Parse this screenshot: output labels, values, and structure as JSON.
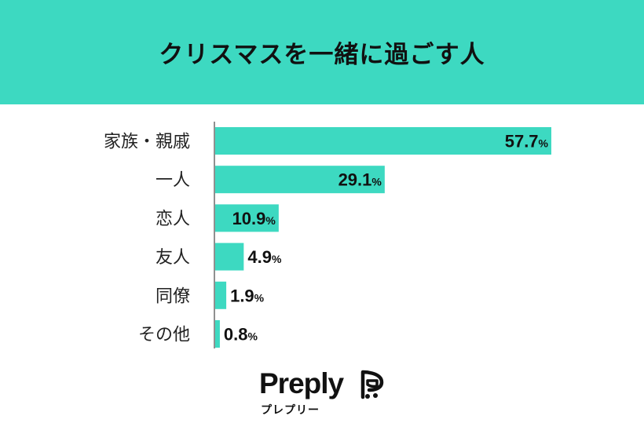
{
  "header": {
    "title": "クリスマスを一緒に過ごす人"
  },
  "chart_data": {
    "type": "bar",
    "orientation": "horizontal",
    "title": "クリスマスを一緒に過ごす人",
    "categories": [
      "家族・親戚",
      "一人",
      "恋人",
      "友人",
      "同僚",
      "その他"
    ],
    "values": [
      57.7,
      29.1,
      10.9,
      4.9,
      1.9,
      0.8
    ],
    "value_labels": [
      "57.7",
      "29.1",
      "10.9",
      "4.9",
      "1.9",
      "0.8"
    ],
    "unit": "%",
    "xlim": [
      0,
      57.7
    ],
    "grid": false,
    "legend": "none",
    "bar_color": "#3dd9c1"
  },
  "brand": {
    "name": "Preply",
    "subtitle": "プレプリー"
  },
  "colors": {
    "accent": "#3dd9c1",
    "text": "#111111"
  }
}
